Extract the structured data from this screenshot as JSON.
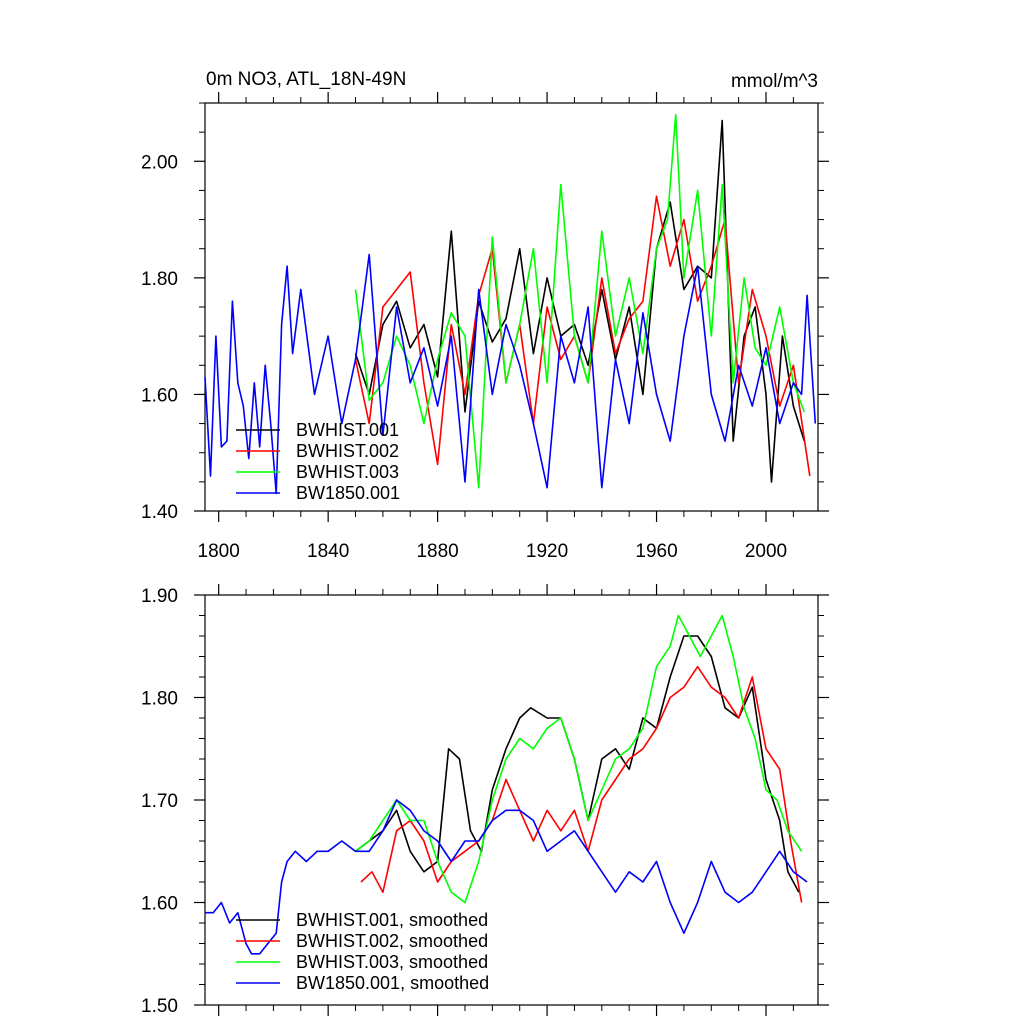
{
  "chart_data": [
    {
      "type": "line",
      "title": "0m NO3, ATL_18N-49N",
      "units": "mmol/m^3",
      "xlim": [
        1795,
        2019
      ],
      "ylim": [
        1.4,
        2.1
      ],
      "xticks": [
        1800,
        1840,
        1880,
        1920,
        1960,
        2000
      ],
      "xtick_labels": [
        "1800",
        "1840",
        "1880",
        "1920",
        "1960",
        "2000"
      ],
      "yticks": [
        1.4,
        1.6,
        1.8,
        2.0
      ],
      "ytick_labels": [
        "1.40",
        "1.60",
        "1.80",
        "2.00"
      ],
      "legend_position": "lower-left",
      "series": [
        {
          "name": "BWHIST.001",
          "color": "#000000",
          "x": [
            1850,
            1855,
            1860,
            1865,
            1870,
            1875,
            1880,
            1885,
            1890,
            1895,
            1900,
            1905,
            1910,
            1915,
            1920,
            1925,
            1930,
            1935,
            1940,
            1945,
            1950,
            1955,
            1960,
            1965,
            1970,
            1975,
            1980,
            1984,
            1988,
            1992,
            1996,
            2000,
            2002,
            2006,
            2010,
            2014
          ],
          "values": [
            1.67,
            1.6,
            1.72,
            1.76,
            1.68,
            1.72,
            1.63,
            1.88,
            1.57,
            1.76,
            1.69,
            1.73,
            1.85,
            1.67,
            1.8,
            1.7,
            1.72,
            1.65,
            1.78,
            1.66,
            1.75,
            1.6,
            1.85,
            1.93,
            1.78,
            1.82,
            1.8,
            2.07,
            1.52,
            1.7,
            1.75,
            1.6,
            1.45,
            1.7,
            1.58,
            1.52
          ]
        },
        {
          "name": "BWHIST.002",
          "color": "#ff0000",
          "x": [
            1850,
            1855,
            1860,
            1865,
            1870,
            1875,
            1880,
            1885,
            1890,
            1895,
            1900,
            1905,
            1910,
            1915,
            1920,
            1925,
            1930,
            1935,
            1940,
            1945,
            1950,
            1955,
            1960,
            1965,
            1970,
            1975,
            1980,
            1985,
            1990,
            1995,
            2000,
            2005,
            2010,
            2016
          ],
          "values": [
            1.66,
            1.55,
            1.75,
            1.78,
            1.81,
            1.62,
            1.48,
            1.72,
            1.6,
            1.77,
            1.85,
            1.62,
            1.72,
            1.55,
            1.75,
            1.66,
            1.7,
            1.62,
            1.8,
            1.67,
            1.73,
            1.76,
            1.94,
            1.82,
            1.9,
            1.76,
            1.82,
            1.9,
            1.62,
            1.78,
            1.7,
            1.58,
            1.65,
            1.46
          ]
        },
        {
          "name": "BWHIST.003",
          "color": "#00ff00",
          "x": [
            1850,
            1855,
            1860,
            1865,
            1870,
            1875,
            1880,
            1885,
            1890,
            1895,
            1900,
            1905,
            1910,
            1915,
            1920,
            1925,
            1930,
            1935,
            1940,
            1945,
            1950,
            1955,
            1960,
            1964,
            1967,
            1970,
            1975,
            1980,
            1984,
            1988,
            1992,
            1996,
            2000,
            2005,
            2010,
            2014
          ],
          "values": [
            1.78,
            1.59,
            1.62,
            1.7,
            1.65,
            1.55,
            1.66,
            1.74,
            1.7,
            1.44,
            1.87,
            1.62,
            1.72,
            1.85,
            1.62,
            1.96,
            1.7,
            1.62,
            1.88,
            1.7,
            1.8,
            1.67,
            1.85,
            1.9,
            2.08,
            1.8,
            1.95,
            1.7,
            1.96,
            1.62,
            1.8,
            1.68,
            1.65,
            1.75,
            1.62,
            1.57
          ]
        },
        {
          "name": "BW1850.001",
          "color": "#0000ff",
          "x": [
            1795,
            1797,
            1799,
            1801,
            1803,
            1805,
            1807,
            1809,
            1811,
            1813,
            1815,
            1817,
            1819,
            1821,
            1823,
            1825,
            1827,
            1830,
            1835,
            1840,
            1845,
            1850,
            1855,
            1860,
            1865,
            1870,
            1875,
            1880,
            1885,
            1890,
            1895,
            1900,
            1905,
            1910,
            1915,
            1920,
            1925,
            1930,
            1935,
            1940,
            1945,
            1950,
            1955,
            1960,
            1965,
            1970,
            1975,
            1980,
            1985,
            1990,
            1995,
            2000,
            2005,
            2010,
            2013,
            2015,
            2018
          ],
          "values": [
            1.63,
            1.46,
            1.7,
            1.51,
            1.52,
            1.76,
            1.62,
            1.58,
            1.49,
            1.62,
            1.51,
            1.65,
            1.55,
            1.43,
            1.72,
            1.82,
            1.67,
            1.78,
            1.6,
            1.7,
            1.55,
            1.66,
            1.84,
            1.53,
            1.75,
            1.62,
            1.68,
            1.58,
            1.7,
            1.45,
            1.78,
            1.6,
            1.72,
            1.65,
            1.55,
            1.44,
            1.7,
            1.62,
            1.75,
            1.44,
            1.66,
            1.55,
            1.74,
            1.6,
            1.52,
            1.7,
            1.82,
            1.6,
            1.52,
            1.65,
            1.58,
            1.68,
            1.55,
            1.62,
            1.6,
            1.77,
            1.55
          ]
        }
      ]
    },
    {
      "type": "line",
      "xlim": [
        1795,
        2019
      ],
      "ylim": [
        1.5,
        1.9
      ],
      "xticks": [
        1800,
        1840,
        1880,
        1920,
        1960,
        2000
      ],
      "yticks": [
        1.5,
        1.6,
        1.7,
        1.8,
        1.9
      ],
      "ytick_labels": [
        "1.50",
        "1.60",
        "1.70",
        "1.80",
        "1.90"
      ],
      "legend_position": "lower-left",
      "series": [
        {
          "name": "BWHIST.001, smoothed",
          "color": "#000000",
          "x": [
            1850,
            1855,
            1860,
            1865,
            1870,
            1875,
            1880,
            1884,
            1888,
            1892,
            1896,
            1900,
            1905,
            1910,
            1914,
            1920,
            1925,
            1930,
            1935,
            1940,
            1945,
            1950,
            1955,
            1960,
            1965,
            1970,
            1975,
            1980,
            1985,
            1990,
            1995,
            2000,
            2005,
            2008,
            2012
          ],
          "values": [
            1.65,
            1.66,
            1.67,
            1.69,
            1.65,
            1.63,
            1.64,
            1.75,
            1.74,
            1.67,
            1.65,
            1.71,
            1.75,
            1.78,
            1.79,
            1.78,
            1.78,
            1.74,
            1.68,
            1.74,
            1.75,
            1.73,
            1.78,
            1.77,
            1.82,
            1.86,
            1.86,
            1.84,
            1.79,
            1.78,
            1.81,
            1.72,
            1.68,
            1.63,
            1.61
          ]
        },
        {
          "name": "BWHIST.002, smoothed",
          "color": "#ff0000",
          "x": [
            1852,
            1856,
            1860,
            1865,
            1870,
            1875,
            1880,
            1885,
            1890,
            1895,
            1900,
            1905,
            1910,
            1915,
            1920,
            1925,
            1930,
            1935,
            1940,
            1945,
            1950,
            1955,
            1960,
            1965,
            1970,
            1975,
            1980,
            1985,
            1990,
            1995,
            2000,
            2005,
            2009,
            2013
          ],
          "values": [
            1.62,
            1.63,
            1.61,
            1.67,
            1.68,
            1.66,
            1.62,
            1.64,
            1.65,
            1.66,
            1.68,
            1.72,
            1.69,
            1.66,
            1.69,
            1.67,
            1.69,
            1.65,
            1.7,
            1.72,
            1.74,
            1.75,
            1.77,
            1.8,
            1.81,
            1.83,
            1.81,
            1.8,
            1.78,
            1.82,
            1.75,
            1.73,
            1.66,
            1.6
          ]
        },
        {
          "name": "BWHIST.003, smoothed",
          "color": "#00ff00",
          "x": [
            1850,
            1855,
            1860,
            1865,
            1870,
            1875,
            1880,
            1885,
            1890,
            1895,
            1900,
            1905,
            1910,
            1915,
            1920,
            1925,
            1930,
            1935,
            1940,
            1945,
            1950,
            1955,
            1960,
            1965,
            1968,
            1972,
            1976,
            1980,
            1984,
            1988,
            1992,
            1996,
            2000,
            2004,
            2008,
            2013
          ],
          "values": [
            1.65,
            1.66,
            1.68,
            1.7,
            1.68,
            1.68,
            1.64,
            1.61,
            1.6,
            1.64,
            1.7,
            1.74,
            1.76,
            1.75,
            1.77,
            1.78,
            1.74,
            1.68,
            1.71,
            1.74,
            1.75,
            1.77,
            1.83,
            1.85,
            1.88,
            1.86,
            1.84,
            1.86,
            1.88,
            1.84,
            1.79,
            1.76,
            1.71,
            1.7,
            1.67,
            1.65
          ]
        },
        {
          "name": "BW1850.001, smoothed",
          "color": "#0000ff",
          "x": [
            1795,
            1798,
            1801,
            1804,
            1807,
            1810,
            1812,
            1815,
            1818,
            1821,
            1823,
            1825,
            1828,
            1832,
            1836,
            1840,
            1845,
            1850,
            1855,
            1860,
            1865,
            1870,
            1875,
            1880,
            1885,
            1890,
            1895,
            1900,
            1905,
            1910,
            1915,
            1920,
            1925,
            1930,
            1935,
            1940,
            1945,
            1950,
            1955,
            1960,
            1965,
            1970,
            1975,
            1980,
            1985,
            1990,
            1995,
            2000,
            2005,
            2010,
            2015
          ],
          "values": [
            1.59,
            1.59,
            1.6,
            1.58,
            1.59,
            1.56,
            1.55,
            1.55,
            1.56,
            1.57,
            1.62,
            1.64,
            1.65,
            1.64,
            1.65,
            1.65,
            1.66,
            1.65,
            1.65,
            1.67,
            1.7,
            1.69,
            1.67,
            1.66,
            1.64,
            1.66,
            1.66,
            1.68,
            1.69,
            1.69,
            1.68,
            1.65,
            1.66,
            1.67,
            1.65,
            1.63,
            1.61,
            1.63,
            1.62,
            1.64,
            1.6,
            1.57,
            1.6,
            1.64,
            1.61,
            1.6,
            1.61,
            1.63,
            1.65,
            1.63,
            1.62
          ]
        }
      ]
    }
  ]
}
